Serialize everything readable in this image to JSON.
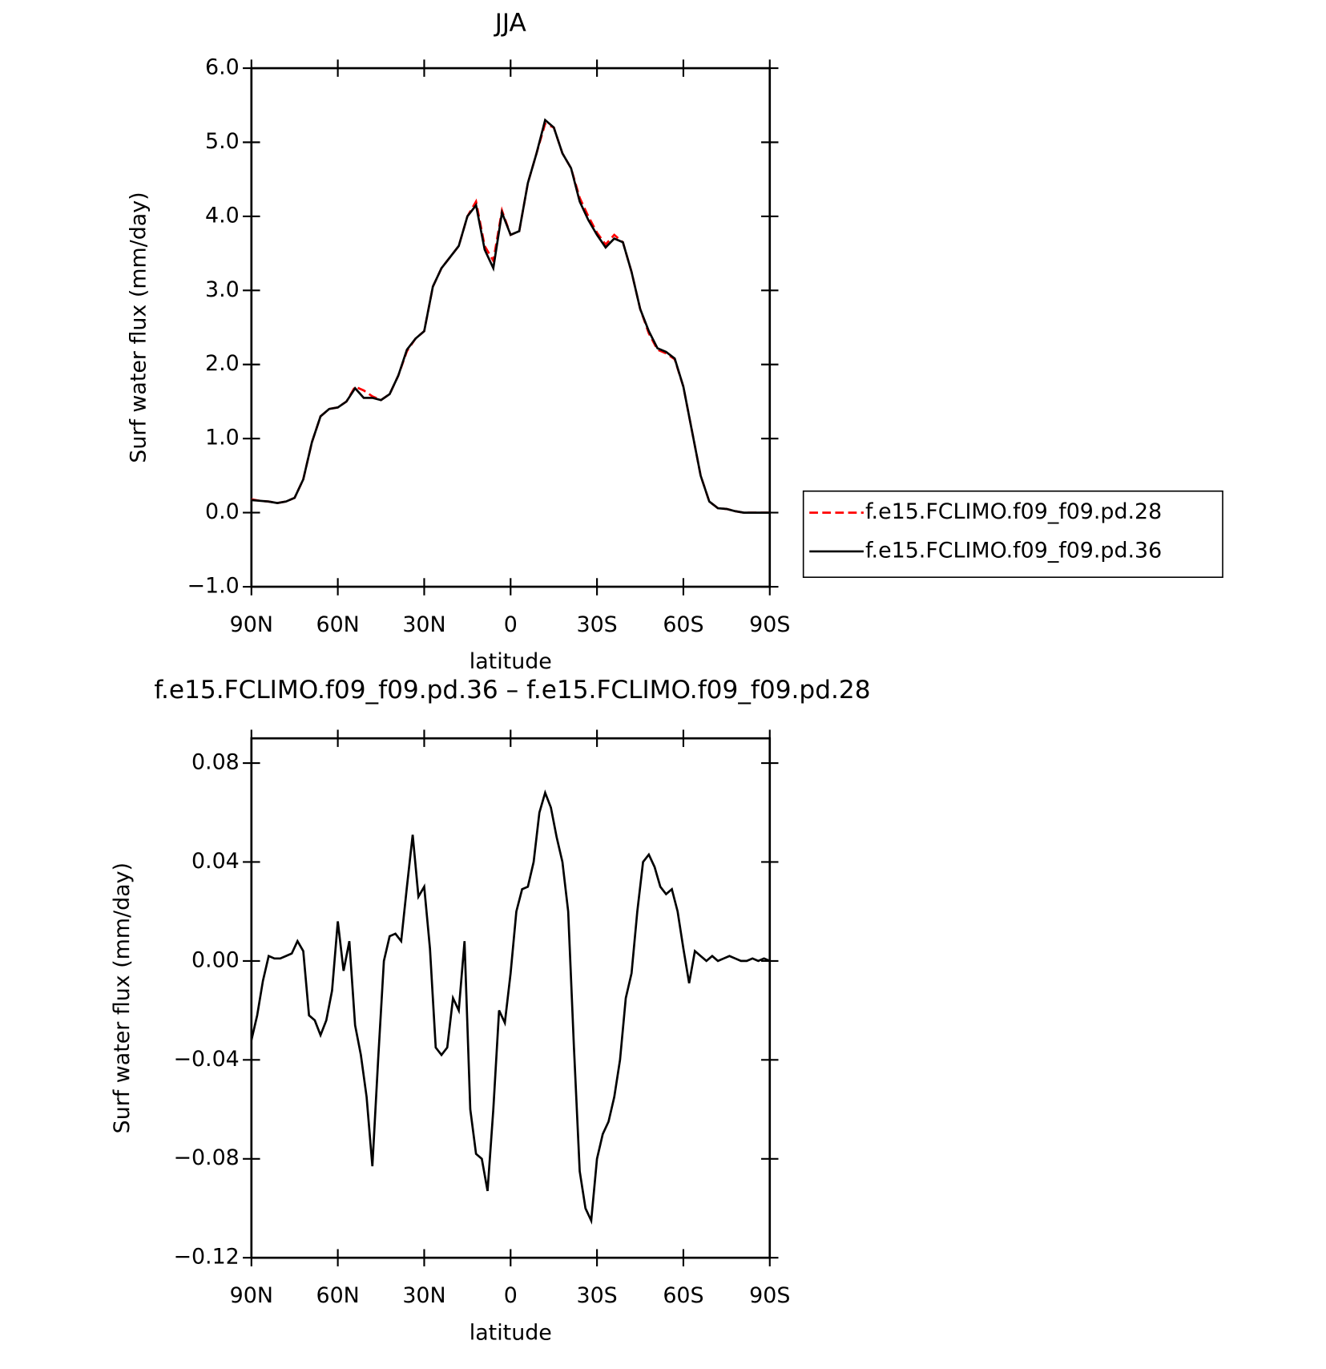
{
  "chart_data": [
    {
      "type": "line",
      "title": "JJA",
      "xlabel": "latitude",
      "ylabel": "Surf water flux (mm/day)",
      "x": [
        90,
        87,
        84,
        81,
        78,
        75,
        72,
        69,
        66,
        63,
        60,
        57,
        54,
        51,
        48,
        45,
        42,
        39,
        36,
        33,
        30,
        27,
        24,
        21,
        18,
        15,
        12,
        9,
        6,
        3,
        0,
        -3,
        -6,
        -9,
        -12,
        -15,
        -18,
        -21,
        -24,
        -27,
        -30,
        -33,
        -36,
        -39,
        -42,
        -45,
        -48,
        -51,
        -54,
        -57,
        -60,
        -63,
        -66,
        -69,
        -72,
        -75,
        -78,
        -81,
        -84,
        -87,
        -90
      ],
      "series": [
        {
          "name": "f.e15.FCLIMO.f09_f09.pd.28",
          "color": "#ff0000",
          "style": "dashed",
          "values": [
            0.18,
            0.16,
            0.15,
            0.13,
            0.15,
            0.2,
            0.45,
            0.95,
            1.3,
            1.4,
            1.42,
            1.5,
            1.7,
            1.65,
            1.57,
            1.52,
            1.6,
            1.85,
            2.18,
            2.35,
            2.45,
            3.05,
            3.3,
            3.45,
            3.6,
            4.0,
            4.2,
            3.6,
            3.4,
            4.08,
            3.75,
            3.8,
            4.45,
            4.85,
            5.25,
            5.2,
            4.85,
            4.65,
            4.25,
            4.0,
            3.78,
            3.62,
            3.75,
            3.65,
            3.25,
            2.75,
            2.42,
            2.2,
            2.15,
            2.07,
            1.7,
            1.1,
            0.5,
            0.15,
            0.06,
            0.05,
            0.02,
            0.0,
            0.0,
            0.0,
            0.0
          ]
        },
        {
          "name": "f.e15.FCLIMO.f09_f09.pd.36",
          "color": "#000000",
          "style": "solid",
          "values": [
            0.17,
            0.16,
            0.15,
            0.13,
            0.15,
            0.2,
            0.45,
            0.95,
            1.3,
            1.4,
            1.42,
            1.5,
            1.68,
            1.55,
            1.55,
            1.52,
            1.6,
            1.85,
            2.2,
            2.35,
            2.45,
            3.05,
            3.3,
            3.45,
            3.6,
            4.0,
            4.15,
            3.55,
            3.3,
            4.05,
            3.75,
            3.8,
            4.45,
            4.85,
            5.3,
            5.2,
            4.85,
            4.65,
            4.2,
            3.95,
            3.75,
            3.58,
            3.7,
            3.65,
            3.25,
            2.75,
            2.45,
            2.22,
            2.17,
            2.08,
            1.7,
            1.1,
            0.5,
            0.15,
            0.06,
            0.05,
            0.02,
            0.0,
            0.0,
            0.0,
            0.0
          ]
        }
      ],
      "xlim": [
        90,
        -90
      ],
      "xticks": [
        {
          "value": 90,
          "label": "90N"
        },
        {
          "value": 60,
          "label": "60N"
        },
        {
          "value": 30,
          "label": "30N"
        },
        0,
        {
          "value": -30,
          "label": "30S"
        },
        {
          "value": -60,
          "label": "60S"
        },
        {
          "value": -90,
          "label": "90S"
        }
      ],
      "ylim": [
        -1,
        6
      ],
      "yticks": [
        {
          "value": -1,
          "label": "−1.0"
        },
        {
          "value": 0,
          "label": "0.0"
        },
        {
          "value": 1,
          "label": "1.0"
        },
        {
          "value": 2,
          "label": "2.0"
        },
        {
          "value": 3,
          "label": "3.0"
        },
        {
          "value": 4,
          "label": "4.0"
        },
        {
          "value": 5,
          "label": "5.0"
        },
        {
          "value": 6,
          "label": "6.0"
        }
      ],
      "legend": "right"
    },
    {
      "type": "line",
      "title": "f.e15.FCLIMO.f09_f09.pd.36 – f.e15.FCLIMO.f09_f09.pd.28",
      "xlabel": "latitude",
      "ylabel": "Surf water flux (mm/day)",
      "x": [
        90,
        88,
        86,
        84,
        82,
        80,
        78,
        76,
        74,
        72,
        70,
        68,
        66,
        64,
        62,
        60,
        58,
        56,
        54,
        52,
        50,
        48,
        46,
        44,
        42,
        40,
        38,
        36,
        34,
        32,
        30,
        28,
        26,
        24,
        22,
        20,
        18,
        16,
        14,
        12,
        10,
        8,
        6,
        4,
        2,
        0,
        -2,
        -4,
        -6,
        -8,
        -10,
        -12,
        -14,
        -16,
        -18,
        -20,
        -22,
        -24,
        -26,
        -28,
        -30,
        -32,
        -34,
        -36,
        -38,
        -40,
        -42,
        -44,
        -46,
        -48,
        -50,
        -52,
        -54,
        -56,
        -58,
        -60,
        -62,
        -64,
        -66,
        -68,
        -70,
        -72,
        -74,
        -76,
        -78,
        -80,
        -82,
        -84,
        -86,
        -88,
        -90
      ],
      "series": [
        {
          "color": "#000000",
          "style": "solid",
          "values": [
            -0.032,
            -0.022,
            -0.008,
            0.002,
            0.001,
            0.001,
            0.002,
            0.003,
            0.008,
            0.004,
            -0.022,
            -0.024,
            -0.03,
            -0.024,
            -0.012,
            0.016,
            -0.004,
            0.008,
            -0.026,
            -0.038,
            -0.055,
            -0.083,
            -0.04,
            0.0,
            0.01,
            0.011,
            0.008,
            0.03,
            0.051,
            0.026,
            0.03,
            0.005,
            -0.035,
            -0.038,
            -0.035,
            -0.015,
            -0.02,
            0.008,
            -0.06,
            -0.078,
            -0.08,
            -0.093,
            -0.06,
            -0.02,
            -0.025,
            -0.005,
            0.02,
            0.029,
            0.03,
            0.04,
            0.06,
            0.068,
            0.062,
            0.05,
            0.04,
            0.02,
            -0.035,
            -0.085,
            -0.1,
            -0.105,
            -0.08,
            -0.07,
            -0.065,
            -0.055,
            -0.04,
            -0.015,
            -0.005,
            0.02,
            0.04,
            0.043,
            0.038,
            0.03,
            0.027,
            0.029,
            0.02,
            0.005,
            -0.009,
            0.004,
            0.002,
            0.0,
            0.002,
            0.0,
            0.001,
            0.002,
            0.001,
            0.0,
            0.0,
            0.001,
            0.0,
            0.001,
            0.0
          ]
        }
      ],
      "xlim": [
        90,
        -90
      ],
      "xticks": [
        {
          "value": 90,
          "label": "90N"
        },
        {
          "value": 60,
          "label": "60N"
        },
        {
          "value": 30,
          "label": "30N"
        },
        0,
        {
          "value": -30,
          "label": "30S"
        },
        {
          "value": -60,
          "label": "60S"
        },
        {
          "value": -90,
          "label": "90S"
        }
      ],
      "ylim": [
        -0.12,
        0.09
      ],
      "yticks": [
        {
          "value": -0.12,
          "label": "−0.12"
        },
        {
          "value": -0.08,
          "label": "−0.08"
        },
        {
          "value": -0.04,
          "label": "−0.04"
        },
        {
          "value": 0,
          "label": "0.00"
        },
        {
          "value": 0.04,
          "label": "0.04"
        },
        {
          "value": 0.08,
          "label": "0.08"
        }
      ]
    }
  ]
}
